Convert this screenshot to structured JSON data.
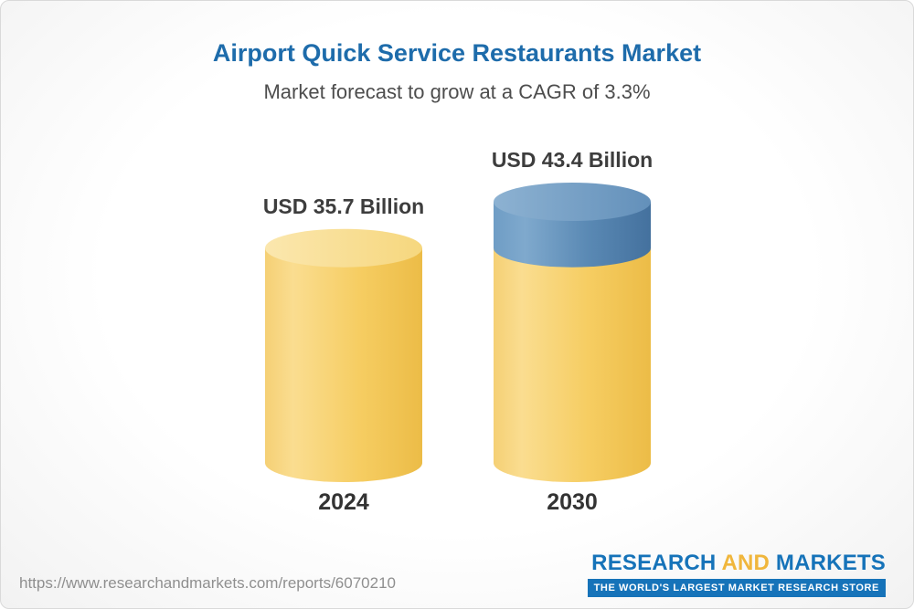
{
  "chart_data": {
    "type": "bar",
    "title": "Airport Quick Service Restaurants Market",
    "subtitle": "Market forecast to grow at a CAGR of 3.3%",
    "unit": "USD Billion",
    "cagr_percent": 3.3,
    "categories": [
      "2024",
      "2030"
    ],
    "values": [
      35.7,
      43.4
    ],
    "value_labels": [
      "USD 35.7 Billion",
      "USD 43.4 Billion"
    ],
    "ylim": [
      0,
      43.4
    ],
    "grid": false,
    "legend": "none",
    "bars": [
      {
        "category": "2024",
        "value": 35.7,
        "label": "USD 35.7 Billion",
        "segments": [
          {
            "value": 35.7,
            "color": "yellow"
          }
        ]
      },
      {
        "category": "2030",
        "value": 43.4,
        "label": "USD 43.4 Billion",
        "segments": [
          {
            "value": 35.7,
            "color": "yellow"
          },
          {
            "value": 7.7,
            "color": "blue"
          }
        ]
      }
    ],
    "colors": {
      "yellow": "#f6cd62",
      "blue": "#5a89b4"
    }
  },
  "footer": {
    "url": "https://www.researchandmarkets.com/reports/6070210",
    "logo": {
      "word1": "RESEARCH",
      "word2": "AND",
      "word3": "MARKETS",
      "tagline": "THE WORLD'S LARGEST MARKET RESEARCH STORE"
    }
  },
  "colors": {
    "title_blue": "#1e6cab",
    "logo_blue": "#1673b9",
    "logo_gold": "#f0b63c"
  }
}
